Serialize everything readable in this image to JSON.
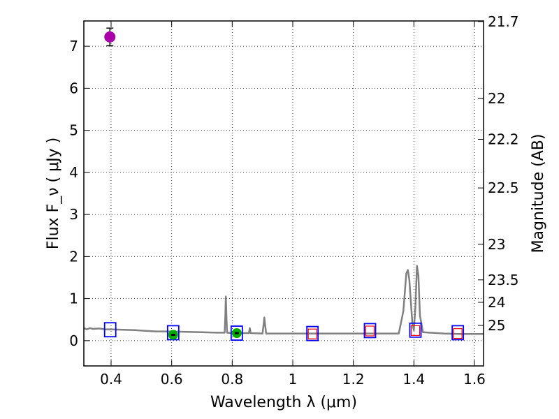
{
  "chart_data": {
    "type": "scatter",
    "xlabel": "Wavelength  λ (μm)",
    "ylabel_left": "Flux  F_ν  ( μJy )",
    "ylabel_right": "Magnitude (AB)",
    "xlim": [
      0.31,
      1.63
    ],
    "ylim": [
      -0.6,
      7.6
    ],
    "grid": true,
    "x_ticks": [
      {
        "v": 0.4,
        "label": "0.4"
      },
      {
        "v": 0.6,
        "label": "0.6"
      },
      {
        "v": 0.8,
        "label": "0.8"
      },
      {
        "v": 1.0,
        "label": "1"
      },
      {
        "v": 1.2,
        "label": "1.2"
      },
      {
        "v": 1.4,
        "label": "1.4"
      },
      {
        "v": 1.6,
        "label": "1.6"
      }
    ],
    "y_ticks": [
      {
        "v": 0,
        "label": "0"
      },
      {
        "v": 1,
        "label": "1"
      },
      {
        "v": 2,
        "label": "2"
      },
      {
        "v": 3,
        "label": "3"
      },
      {
        "v": 4,
        "label": "4"
      },
      {
        "v": 5,
        "label": "5"
      },
      {
        "v": 6,
        "label": "6"
      },
      {
        "v": 7,
        "label": "7"
      }
    ],
    "right_ticks": [
      {
        "mag": 21.7,
        "label": "21.7"
      },
      {
        "mag": 22.0,
        "label": "22"
      },
      {
        "mag": 22.2,
        "label": "22.2"
      },
      {
        "mag": 22.5,
        "label": "22.5"
      },
      {
        "mag": 23.0,
        "label": "23"
      },
      {
        "mag": 23.5,
        "label": "23.5"
      },
      {
        "mag": 24.0,
        "label": "24"
      },
      {
        "mag": 25.0,
        "label": "25"
      }
    ],
    "series": [
      {
        "kind": "line",
        "color": "#808080",
        "points": [
          [
            0.31,
            0.3
          ],
          [
            0.32,
            0.27
          ],
          [
            0.33,
            0.3
          ],
          [
            0.34,
            0.28
          ],
          [
            0.36,
            0.29
          ],
          [
            0.38,
            0.27
          ],
          [
            0.4,
            0.27
          ],
          [
            0.44,
            0.26
          ],
          [
            0.48,
            0.25
          ],
          [
            0.5,
            0.24
          ],
          [
            0.55,
            0.22
          ],
          [
            0.6,
            0.22
          ],
          [
            0.65,
            0.21
          ],
          [
            0.7,
            0.2
          ],
          [
            0.75,
            0.19
          ],
          [
            0.775,
            0.19
          ],
          [
            0.777,
            0.55
          ],
          [
            0.779,
            1.05
          ],
          [
            0.781,
            0.55
          ],
          [
            0.783,
            0.19
          ],
          [
            0.8,
            0.18
          ],
          [
            0.82,
            0.18
          ],
          [
            0.84,
            0.18
          ],
          [
            0.855,
            0.18
          ],
          [
            0.858,
            0.3
          ],
          [
            0.861,
            0.18
          ],
          [
            0.9,
            0.17
          ],
          [
            0.903,
            0.35
          ],
          [
            0.906,
            0.55
          ],
          [
            0.909,
            0.35
          ],
          [
            0.912,
            0.17
          ],
          [
            0.95,
            0.17
          ],
          [
            1.0,
            0.17
          ],
          [
            1.1,
            0.17
          ],
          [
            1.2,
            0.17
          ],
          [
            1.3,
            0.17
          ],
          [
            1.35,
            0.17
          ],
          [
            1.365,
            0.7
          ],
          [
            1.375,
            1.6
          ],
          [
            1.38,
            1.68
          ],
          [
            1.385,
            1.45
          ],
          [
            1.395,
            0.4
          ],
          [
            1.4,
            0.25
          ],
          [
            1.405,
            0.8
          ],
          [
            1.41,
            1.78
          ],
          [
            1.415,
            1.55
          ],
          [
            1.42,
            0.6
          ],
          [
            1.43,
            0.2
          ],
          [
            1.5,
            0.17
          ],
          [
            1.55,
            0.16
          ],
          [
            1.63,
            0.16
          ]
        ]
      },
      {
        "kind": "marker",
        "marker": "square-blue",
        "color": "#0000ff",
        "points": [
          [
            0.397,
            0.26
          ],
          [
            0.605,
            0.19
          ],
          [
            0.815,
            0.18
          ],
          [
            1.065,
            0.17
          ],
          [
            1.255,
            0.24
          ],
          [
            1.405,
            0.25
          ],
          [
            1.545,
            0.19
          ]
        ]
      },
      {
        "kind": "marker",
        "marker": "square-red",
        "color": "#ff0000",
        "points": [
          [
            1.065,
            0.16
          ],
          [
            1.255,
            0.23
          ],
          [
            1.405,
            0.24
          ],
          [
            1.545,
            0.17
          ]
        ]
      },
      {
        "kind": "marker",
        "marker": "circle-green",
        "color": "#00aa00",
        "points": [
          [
            0.605,
            0.14,
            0.03
          ],
          [
            0.815,
            0.18,
            0.03
          ]
        ]
      },
      {
        "kind": "marker",
        "marker": "circle-magenta",
        "color": "#aa00aa",
        "points": [
          [
            0.396,
            7.22,
            0.21
          ]
        ]
      }
    ]
  }
}
